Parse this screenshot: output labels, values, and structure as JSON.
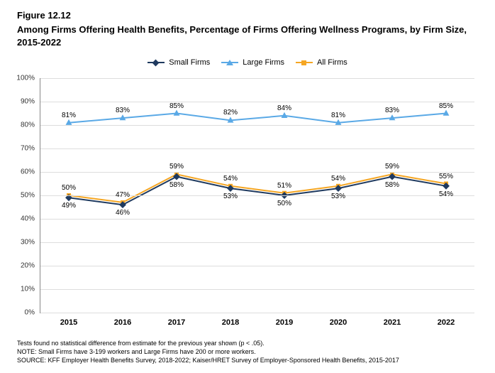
{
  "figure_number": "Figure 12.12",
  "title": "Among Firms Offering Health Benefits, Percentage of Firms Offering Wellness Programs, by Firm Size, 2015-2022",
  "legend": {
    "items": [
      {
        "key": "small",
        "label": "Small Firms"
      },
      {
        "key": "large",
        "label": "Large Firms"
      },
      {
        "key": "all",
        "label": "All Firms"
      }
    ]
  },
  "chart": {
    "type": "line",
    "background_color": "#ffffff",
    "grid_color": "#dddddd",
    "axis_color": "#888888",
    "label_fontsize": 10,
    "xcategories": [
      "2015",
      "2016",
      "2017",
      "2018",
      "2019",
      "2020",
      "2021",
      "2022"
    ],
    "ylim": [
      0,
      100
    ],
    "ytick_step": 10,
    "ytick_suffix": "%",
    "series": {
      "small": {
        "label": "Small Firms",
        "color": "#1f3a5f",
        "marker": "diamond",
        "marker_size": 7,
        "line_width": 2,
        "values": [
          49,
          46,
          58,
          53,
          50,
          53,
          58,
          54
        ],
        "label_offset": "below"
      },
      "large": {
        "label": "Large Firms",
        "color": "#5aa9e6",
        "marker": "triangle",
        "marker_size": 8,
        "line_width": 2,
        "values": [
          81,
          83,
          85,
          82,
          84,
          81,
          83,
          85
        ],
        "label_offset": "above"
      },
      "all": {
        "label": "All Firms",
        "color": "#f5a623",
        "marker": "square",
        "marker_size": 6,
        "line_width": 2,
        "values": [
          50,
          47,
          59,
          54,
          51,
          54,
          59,
          55
        ],
        "label_offset": "above"
      }
    }
  },
  "footnotes": [
    "Tests found no statistical difference from estimate for the previous year shown (p < .05).",
    "NOTE: Small Firms have 3-199 workers and Large Firms have 200 or more workers.",
    "SOURCE: KFF Employer Health Benefits Survey, 2018-2022; Kaiser/HRET Survey of Employer-Sponsored Health Benefits, 2015-2017"
  ]
}
